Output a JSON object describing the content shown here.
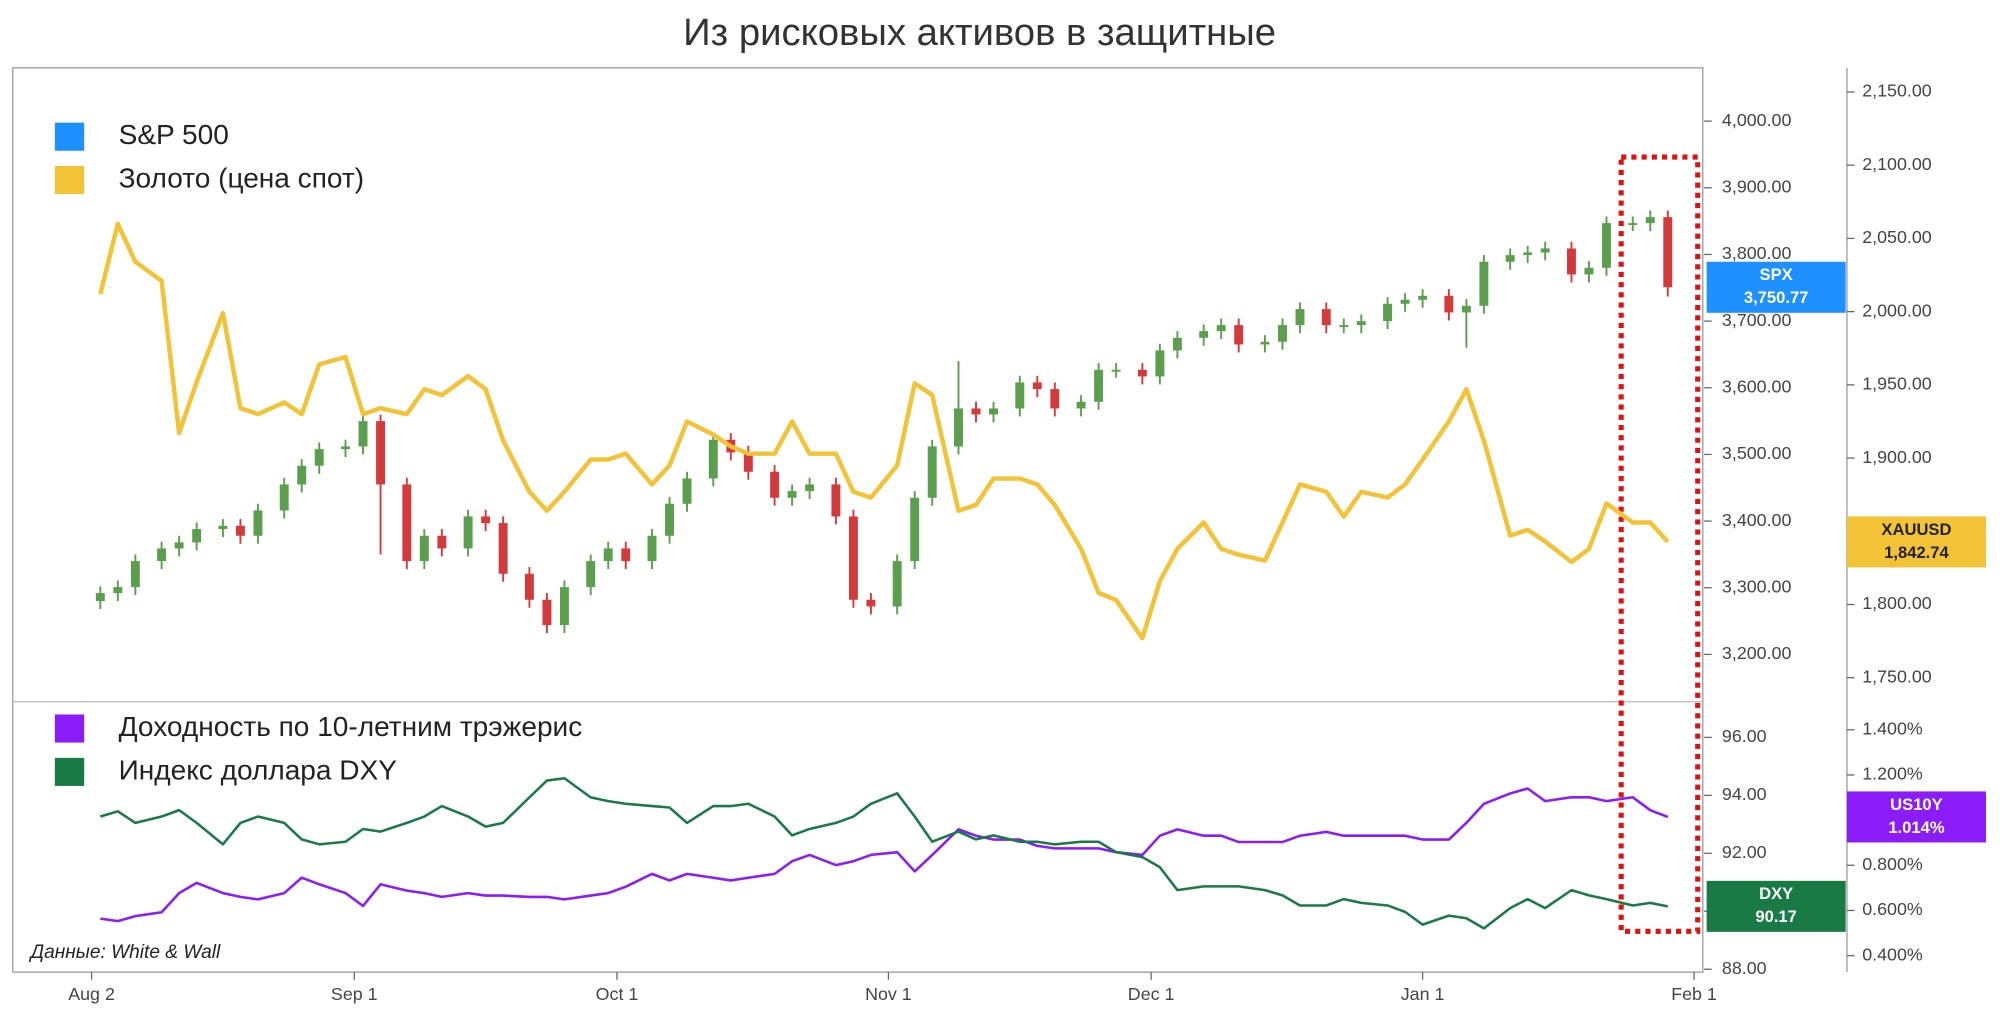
{
  "chart_data": [
    {
      "type": "candlestick",
      "title": "Из рисковых активов в защитные",
      "x": [
        2,
        4,
        6,
        9,
        11,
        13,
        16,
        18,
        20,
        23,
        25,
        27,
        30,
        32,
        34,
        37,
        39,
        41,
        44,
        46,
        48,
        51,
        53,
        55,
        58,
        60,
        62,
        65,
        67,
        69,
        72,
        74,
        76,
        79,
        81,
        83,
        86,
        88,
        90,
        93,
        95,
        97,
        100,
        102,
        104,
        107,
        109,
        111,
        114,
        116,
        118,
        121,
        123,
        125,
        128,
        130,
        132,
        135,
        137,
        139,
        142,
        144,
        146,
        149,
        151,
        153,
        156,
        158,
        160,
        163,
        165,
        167,
        170,
        172,
        174,
        177,
        179,
        181
      ],
      "xlim": [
        -8,
        185
      ],
      "ylim": [
        3129,
        4080
      ],
      "yticks": [
        {
          "value": 3200,
          "label": "3,200.00"
        },
        {
          "value": 3300,
          "label": "3,300.00"
        },
        {
          "value": 3400,
          "label": "3,400.00"
        },
        {
          "value": 3500,
          "label": "3,500.00"
        },
        {
          "value": 3600,
          "label": "3,600.00"
        },
        {
          "value": 3700,
          "label": "3,700.00"
        },
        {
          "value": 3800,
          "label": "3,800.00"
        },
        {
          "value": 3900,
          "label": "3,900.00"
        },
        {
          "value": 4000,
          "label": "4,000.00"
        }
      ],
      "y2lim": [
        1733.6,
        2166.5
      ],
      "y2ticks": [
        {
          "value": 1750,
          "label": "1,750.00"
        },
        {
          "value": 1800,
          "label": "1,800.00"
        },
        {
          "value": 1850,
          "label": "1,850.00"
        },
        {
          "value": 1900,
          "label": "1,900.00"
        },
        {
          "value": 1950,
          "label": "1,950.00"
        },
        {
          "value": 2000,
          "label": "2,000.00"
        },
        {
          "value": 2050,
          "label": "2,050.00"
        },
        {
          "value": 2100,
          "label": "2,100.00"
        },
        {
          "value": 2150,
          "label": "2,150.00"
        }
      ],
      "legend": "upper left",
      "series": [
        {
          "name": "S&P 500",
          "color": "#1e90ff",
          "up_color": "#5b9e4d",
          "down_color": "#d23b3b",
          "tag": "SPX",
          "last_value": 3750.77,
          "last_label": "3,750.77",
          "open": [
            3280,
            3292,
            3301,
            3340,
            3359,
            3368,
            3388,
            3393,
            3378,
            3416,
            3455,
            3483,
            3508,
            3512,
            3550,
            3455,
            3340,
            3378,
            3359,
            3407,
            3397,
            3321,
            3282,
            3244,
            3301,
            3340,
            3359,
            3340,
            3378,
            3426,
            3464,
            3522,
            3503,
            3474,
            3435,
            3445,
            3455,
            3407,
            3282,
            3272,
            3340,
            3435,
            3512,
            3569,
            3560,
            3569,
            3608,
            3598,
            3569,
            3579,
            3627,
            3627,
            3617,
            3656,
            3675,
            3685,
            3694,
            3665,
            3669,
            3694,
            3718,
            3694,
            3694,
            3700,
            3726,
            3732,
            3738,
            3713,
            3723,
            3789,
            3799,
            3803,
            3809,
            3770,
            3780,
            3847,
            3847,
            3856
          ],
          "high": [
            3302,
            3311,
            3350,
            3369,
            3378,
            3398,
            3403,
            3403,
            3426,
            3465,
            3493,
            3518,
            3522,
            3560,
            3560,
            3465,
            3388,
            3388,
            3417,
            3417,
            3407,
            3331,
            3292,
            3311,
            3350,
            3369,
            3369,
            3388,
            3436,
            3474,
            3532,
            3532,
            3513,
            3484,
            3455,
            3465,
            3465,
            3417,
            3292,
            3350,
            3445,
            3522,
            3640,
            3579,
            3579,
            3618,
            3618,
            3608,
            3589,
            3637,
            3637,
            3637,
            3666,
            3685,
            3695,
            3704,
            3704,
            3679,
            3704,
            3728,
            3728,
            3704,
            3710,
            3736,
            3742,
            3748,
            3748,
            3733,
            3799,
            3809,
            3813,
            3819,
            3819,
            3790,
            3857,
            3857,
            3866,
            3866
          ],
          "low": [
            3268,
            3280,
            3289,
            3328,
            3347,
            3356,
            3376,
            3366,
            3366,
            3404,
            3443,
            3471,
            3496,
            3500,
            3350,
            3328,
            3328,
            3347,
            3347,
            3385,
            3309,
            3270,
            3232,
            3232,
            3289,
            3328,
            3328,
            3328,
            3366,
            3414,
            3452,
            3491,
            3462,
            3423,
            3423,
            3433,
            3395,
            3270,
            3260,
            3260,
            3328,
            3423,
            3500,
            3548,
            3548,
            3557,
            3586,
            3557,
            3557,
            3567,
            3615,
            3605,
            3605,
            3644,
            3663,
            3673,
            3653,
            3653,
            3657,
            3682,
            3682,
            3682,
            3682,
            3688,
            3714,
            3720,
            3701,
            3660,
            3711,
            3777,
            3787,
            3791,
            3758,
            3758,
            3768,
            3835,
            3835,
            3737
          ],
          "close": [
            3292,
            3301,
            3340,
            3359,
            3368,
            3388,
            3393,
            3378,
            3416,
            3455,
            3483,
            3508,
            3512,
            3550,
            3455,
            3340,
            3378,
            3359,
            3407,
            3397,
            3321,
            3282,
            3244,
            3301,
            3340,
            3359,
            3340,
            3378,
            3426,
            3464,
            3522,
            3503,
            3474,
            3435,
            3445,
            3455,
            3407,
            3282,
            3272,
            3340,
            3435,
            3512,
            3569,
            3560,
            3569,
            3608,
            3598,
            3569,
            3579,
            3627,
            3627,
            3617,
            3656,
            3675,
            3685,
            3694,
            3665,
            3669,
            3694,
            3718,
            3694,
            3694,
            3700,
            3726,
            3732,
            3738,
            3713,
            3723,
            3789,
            3799,
            3803,
            3809,
            3770,
            3780,
            3847,
            3847,
            3856,
            3750.77
          ]
        },
        {
          "name": "Золото (цена спот)",
          "color": "#f2c237",
          "axis": "y2",
          "tag": "XAUUSD",
          "last_value": 1842.74,
          "last_label": "1,842.74",
          "values": [
            2012,
            2060,
            2034,
            2021,
            1917,
            1952,
            1999,
            1934,
            1930,
            1938,
            1930,
            1964,
            1969,
            1930,
            1934,
            1930,
            1947,
            1943,
            1956,
            1947,
            1912,
            1877,
            1864,
            1877,
            1899,
            1899,
            1903,
            1882,
            1895,
            1925,
            1916,
            1908,
            1903,
            1903,
            1925,
            1903,
            1903,
            1877,
            1873,
            1895,
            1951,
            1943,
            1864,
            1868,
            1886,
            1886,
            1882,
            1868,
            1838,
            1808,
            1803,
            1777,
            1816,
            1838,
            1856,
            1838,
            1834,
            1830,
            1856,
            1882,
            1877,
            1860,
            1877,
            1873,
            1882,
            1899,
            1925,
            1947,
            1912,
            1847,
            1851,
            1843,
            1829,
            1838,
            1869,
            1856,
            1856,
            1842.74
          ]
        }
      ]
    },
    {
      "type": "line",
      "x": [
        2,
        4,
        6,
        9,
        11,
        13,
        16,
        18,
        20,
        23,
        25,
        27,
        30,
        32,
        34,
        37,
        39,
        41,
        44,
        46,
        48,
        51,
        53,
        55,
        58,
        60,
        62,
        65,
        67,
        69,
        72,
        74,
        76,
        79,
        81,
        83,
        86,
        88,
        90,
        93,
        95,
        97,
        100,
        102,
        104,
        107,
        109,
        111,
        114,
        116,
        118,
        121,
        123,
        125,
        128,
        130,
        132,
        135,
        137,
        139,
        142,
        144,
        146,
        149,
        151,
        153,
        156,
        158,
        160,
        163,
        165,
        167,
        170,
        172,
        174,
        177,
        179,
        181
      ],
      "xlim": [
        -8,
        185
      ],
      "xticks": [
        {
          "value": 1,
          "label": "Aug 2"
        },
        {
          "value": 31,
          "label": "Sep 1"
        },
        {
          "value": 61,
          "label": "Oct 1"
        },
        {
          "value": 92,
          "label": "Nov 1"
        },
        {
          "value": 122,
          "label": "Dec 1"
        },
        {
          "value": 153,
          "label": "Jan 1"
        },
        {
          "value": 184,
          "label": "Feb 1"
        }
      ],
      "ylim": [
        87.9,
        97.23
      ],
      "yticks": [
        {
          "value": 88,
          "label": "88.00"
        },
        {
          "value": 90,
          "label": "90.00"
        },
        {
          "value": 92,
          "label": "92.00"
        },
        {
          "value": 94,
          "label": "94.00"
        },
        {
          "value": 96,
          "label": "96.00"
        }
      ],
      "y2lim": [
        0.327,
        1.524
      ],
      "y2ticks": [
        {
          "value": 0.4,
          "label": "0.400%"
        },
        {
          "value": 0.6,
          "label": "0.600%"
        },
        {
          "value": 0.8,
          "label": "0.800%"
        },
        {
          "value": 1.0,
          "label": "1.000%"
        },
        {
          "value": 1.2,
          "label": "1.200%"
        },
        {
          "value": 1.4,
          "label": "1.400%"
        }
      ],
      "legend": "upper left",
      "annotation": "Данные: White & Wall",
      "series": [
        {
          "name": "Доходность по 10-летним трэжерис",
          "color": "#8b1cf7",
          "axis": "y2",
          "tag": "US10Y",
          "last_value": 1.014,
          "last_label": "1.014%",
          "values": [
            0.564,
            0.553,
            0.575,
            0.592,
            0.677,
            0.722,
            0.677,
            0.66,
            0.649,
            0.677,
            0.745,
            0.716,
            0.677,
            0.62,
            0.716,
            0.688,
            0.677,
            0.66,
            0.677,
            0.666,
            0.666,
            0.66,
            0.66,
            0.649,
            0.666,
            0.677,
            0.705,
            0.762,
            0.733,
            0.762,
            0.745,
            0.733,
            0.745,
            0.762,
            0.818,
            0.846,
            0.801,
            0.818,
            0.846,
            0.858,
            0.773,
            0.846,
            0.959,
            0.931,
            0.914,
            0.914,
            0.886,
            0.875,
            0.875,
            0.875,
            0.858,
            0.846,
            0.931,
            0.959,
            0.931,
            0.931,
            0.903,
            0.903,
            0.903,
            0.931,
            0.948,
            0.931,
            0.931,
            0.931,
            0.931,
            0.914,
            0.914,
            0.988,
            1.072,
            1.118,
            1.14,
            1.084,
            1.101,
            1.101,
            1.084,
            1.101,
            1.044,
            1.014
          ]
        },
        {
          "name": "Индекс доллара DXY",
          "color": "#1a7a45",
          "tag": "DXY",
          "last_value": 90.17,
          "last_label": "90.17",
          "values": [
            93.27,
            93.45,
            93.05,
            93.27,
            93.49,
            93.05,
            92.31,
            93.05,
            93.27,
            93.05,
            92.48,
            92.31,
            92.4,
            92.84,
            92.75,
            93.05,
            93.27,
            93.63,
            93.27,
            92.92,
            93.05,
            93.93,
            94.51,
            94.59,
            93.93,
            93.8,
            93.71,
            93.63,
            93.58,
            93.05,
            93.63,
            93.63,
            93.71,
            93.27,
            92.62,
            92.84,
            93.05,
            93.27,
            93.71,
            94.07,
            93.27,
            92.4,
            92.75,
            92.48,
            92.62,
            92.4,
            92.4,
            92.31,
            92.4,
            92.4,
            92.04,
            91.87,
            91.52,
            90.73,
            90.86,
            90.86,
            90.86,
            90.73,
            90.55,
            90.2,
            90.2,
            90.42,
            90.29,
            90.2,
            89.98,
            89.54,
            89.85,
            89.76,
            89.41,
            90.11,
            90.42,
            90.11,
            90.73,
            90.55,
            90.42,
            90.2,
            90.29,
            90.17
          ]
        }
      ]
    }
  ]
}
